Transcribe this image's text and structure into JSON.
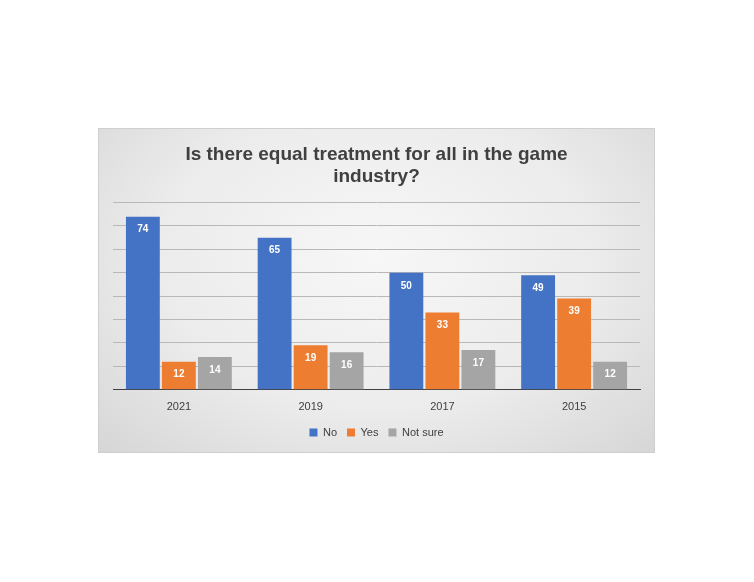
{
  "chart_data": {
    "type": "bar",
    "title": "Is there equal treatment for all in the game industry?",
    "categories": [
      "2021",
      "2019",
      "2017",
      "2015"
    ],
    "series": [
      {
        "name": "No",
        "color": "#4472c4",
        "values": [
          74,
          65,
          50,
          49
        ]
      },
      {
        "name": "Yes",
        "color": "#ed7d31",
        "values": [
          12,
          19,
          33,
          39
        ]
      },
      {
        "name": "Not sure",
        "color": "#a5a5a5",
        "values": [
          14,
          16,
          17,
          12
        ]
      }
    ],
    "ylim": [
      0,
      80
    ],
    "yticks": [
      0,
      10,
      20,
      30,
      40,
      50,
      60,
      70,
      80
    ],
    "grid": true,
    "legend": "bottom",
    "data_labels": true,
    "tick_labels": "x"
  }
}
